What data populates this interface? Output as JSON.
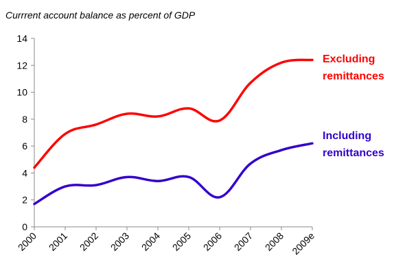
{
  "chart_data": {
    "type": "line",
    "title": "Currrent account balance as percent of GDP",
    "xlabel": "",
    "ylabel": "",
    "x": [
      "2000",
      "2001",
      "2002",
      "2003",
      "2004",
      "2005",
      "2006",
      "2007",
      "2008",
      "2009e"
    ],
    "ylim": [
      0,
      14
    ],
    "yticks": [
      0,
      2,
      4,
      6,
      8,
      10,
      12,
      14
    ],
    "grid": false,
    "series": [
      {
        "name_lines": [
          "Excluding",
          "remittances"
        ],
        "color": "#ff0000",
        "values": [
          4.4,
          6.9,
          7.6,
          8.4,
          8.2,
          8.8,
          7.9,
          10.7,
          12.2,
          12.4
        ]
      },
      {
        "name_lines": [
          "Including",
          "remittances"
        ],
        "color": "#3300cc",
        "values": [
          1.7,
          3.0,
          3.1,
          3.7,
          3.4,
          3.7,
          2.2,
          4.7,
          5.7,
          6.2
        ]
      }
    ]
  }
}
